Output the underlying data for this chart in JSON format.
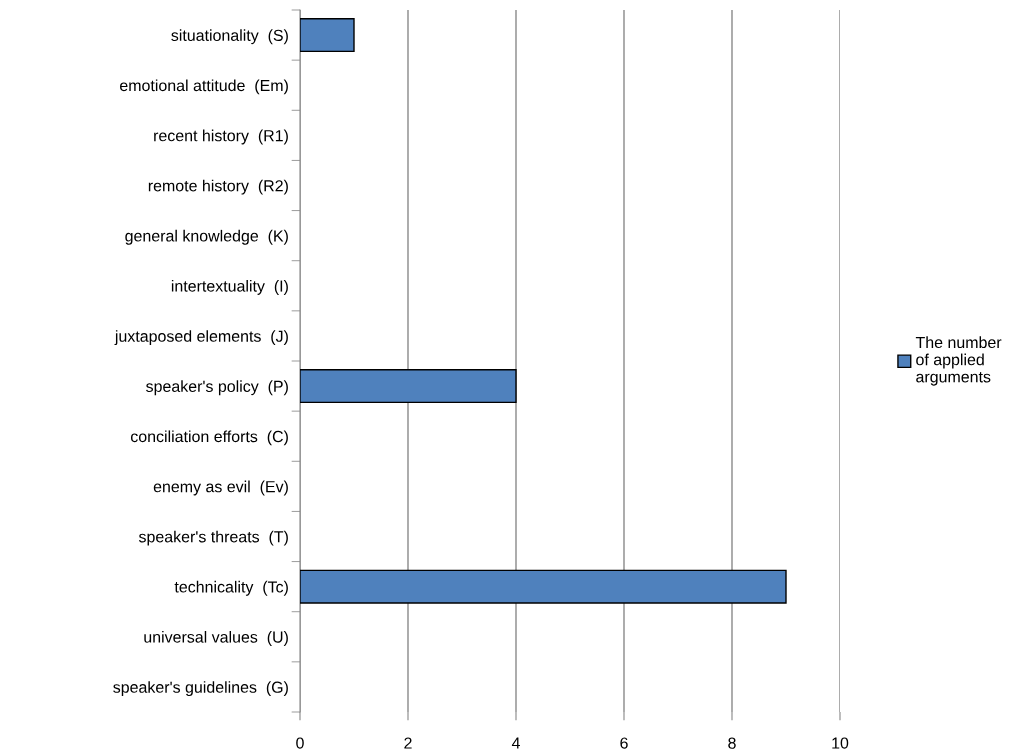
{
  "chart_data": {
    "type": "bar",
    "orientation": "horizontal",
    "categories": [
      "situationality  (S)",
      "emotional attitude  (Em)",
      "recent history  (R1)",
      "remote history  (R2)",
      "general knowledge  (K)",
      "intertextuality  (I)",
      "juxtaposed elements  (J)",
      "speaker's policy  (P)",
      "conciliation efforts  (C)",
      "enemy as evil  (Ev)",
      "speaker's threats  (T)",
      "technicality  (Tc)",
      "universal values  (U)",
      "speaker's guidelines  (G)"
    ],
    "series": [
      {
        "name": "The number of applied arguments",
        "color": "#4f81bd",
        "values": [
          1,
          0,
          0,
          0,
          0,
          0,
          0,
          4,
          0,
          0,
          0,
          9,
          0,
          0
        ]
      }
    ],
    "xlim": [
      0,
      10
    ],
    "xticks": [
      0,
      2,
      4,
      6,
      8,
      10
    ],
    "grid": "x",
    "legend": "right"
  }
}
